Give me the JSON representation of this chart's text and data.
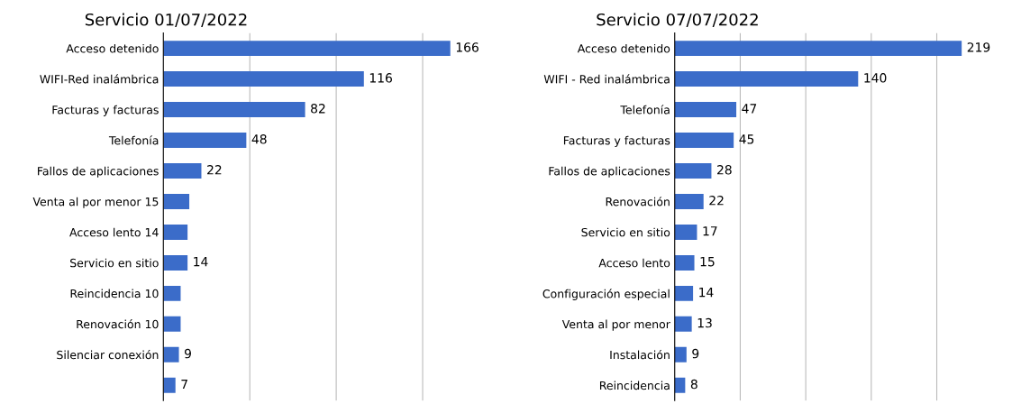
{
  "chart_data": [
    {
      "type": "bar",
      "orientation": "horizontal",
      "title": "Servicio 01/07/2022",
      "categories": [
        "Acceso detenido",
        "WIFI-Red inalámbrica",
        "Facturas y facturas",
        "Telefonía",
        "Fallos de aplicaciones",
        "Venta al por menor 15",
        "Acceso lento 14",
        "Servicio en sitio",
        "Reincidencia 10",
        "Renovación 10",
        "Silenciar conexión",
        null
      ],
      "values": [
        166,
        116,
        82,
        48,
        22,
        15,
        14,
        14,
        10,
        10,
        9,
        7
      ],
      "value_labels": [
        "166",
        "116",
        "82",
        "48",
        "22",
        null,
        null,
        "14",
        null,
        null,
        "9",
        "7"
      ],
      "color": "#3b6cc9",
      "xticks": [
        {
          "value": 50,
          "label": null
        },
        {
          "value": 100,
          "label": null
        },
        {
          "value": 150,
          "label": null
        }
      ],
      "grid": "x",
      "tick_labels": "y"
    },
    {
      "type": "bar",
      "orientation": "horizontal",
      "title": "Servicio 07/07/2022",
      "categories": [
        "Acceso detenido",
        "WIFI - Red inalámbrica",
        "Telefonía",
        "Facturas y facturas",
        "Fallos de aplicaciones",
        "Renovación",
        "Servicio en sitio",
        "Acceso lento",
        "Configuración especial",
        "Venta al por menor",
        "Instalación",
        "Reincidencia"
      ],
      "values": [
        219,
        140,
        47,
        45,
        28,
        22,
        17,
        15,
        14,
        13,
        9,
        8
      ],
      "data_labels": true,
      "color": "#3b6cc9",
      "xticks": [
        {
          "value": 50,
          "label": null
        },
        {
          "value": 100,
          "label": null
        },
        {
          "value": 150,
          "label": null
        },
        {
          "value": 200,
          "label": null
        }
      ],
      "grid": "x",
      "tick_labels": "y"
    }
  ]
}
